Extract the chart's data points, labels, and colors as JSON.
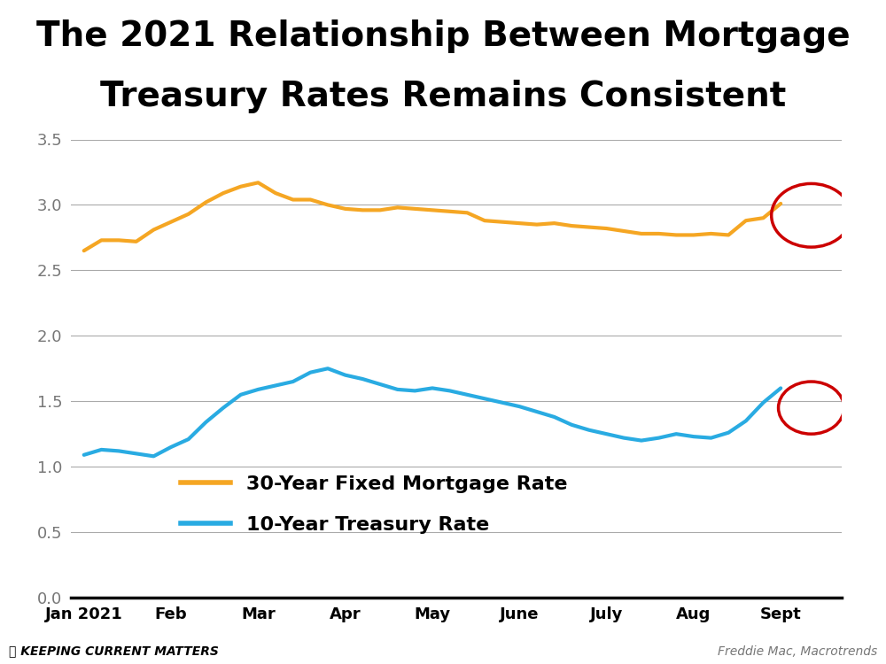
{
  "title_line1": "The 2021 Relationship Between Mortgage",
  "title_line2": "Treasury Rates Remains Consistent",
  "title_fontsize": 28,
  "background_color": "#ffffff",
  "x_labels": [
    "Jan 2021",
    "Feb",
    "Mar",
    "Apr",
    "May",
    "June",
    "July",
    "Aug",
    "Sept"
  ],
  "ylim": [
    0,
    3.5
  ],
  "yticks": [
    0,
    0.5,
    1,
    1.5,
    2,
    2.5,
    3,
    3.5
  ],
  "mortgage_color": "#f5a623",
  "treasury_color": "#29abe2",
  "circle_color": "#cc0000",
  "mortgage_label": "30-Year Fixed Mortgage Rate",
  "treasury_label": "10-Year Treasury Rate",
  "source_text": "Freddie Mac, Macrotrends",
  "brand_text": "Keeping Current Matters",
  "mortgage_data": [
    2.65,
    2.73,
    2.73,
    2.72,
    2.81,
    2.87,
    2.93,
    3.02,
    3.09,
    3.14,
    3.17,
    3.09,
    3.04,
    3.04,
    3.0,
    2.97,
    2.96,
    2.96,
    2.98,
    2.97,
    2.96,
    2.95,
    2.94,
    2.88,
    2.87,
    2.86,
    2.85,
    2.86,
    2.84,
    2.83,
    2.82,
    2.8,
    2.78,
    2.78,
    2.77,
    2.77,
    2.78,
    2.77,
    2.88,
    2.9,
    3.01
  ],
  "treasury_data": [
    1.09,
    1.13,
    1.12,
    1.1,
    1.08,
    1.15,
    1.21,
    1.34,
    1.45,
    1.55,
    1.59,
    1.62,
    1.65,
    1.72,
    1.75,
    1.7,
    1.67,
    1.63,
    1.59,
    1.58,
    1.6,
    1.58,
    1.55,
    1.52,
    1.49,
    1.46,
    1.42,
    1.38,
    1.32,
    1.28,
    1.25,
    1.22,
    1.2,
    1.22,
    1.25,
    1.23,
    1.22,
    1.26,
    1.35,
    1.49,
    1.6
  ]
}
